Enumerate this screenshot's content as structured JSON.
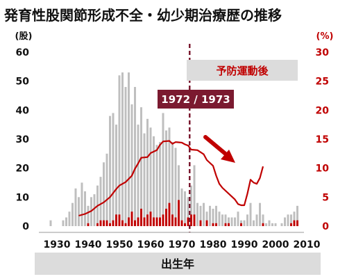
{
  "chart_data": {
    "type": "bar+line",
    "title": "発育性股関節形成不全・幼少期治療歴の推移",
    "xlabel": "出生年",
    "y_left_unit": "(股)",
    "y_right_unit": "(%)",
    "x_range": [
      1925,
      2010
    ],
    "x_ticks": [
      "1930",
      "1940",
      "1950",
      "1960",
      "1970",
      "1980",
      "1990",
      "2000",
      "2010"
    ],
    "y_left_range": [
      0,
      60
    ],
    "y_left_ticks": [
      "0",
      "10",
      "20",
      "30",
      "40",
      "50",
      "60"
    ],
    "y_right_range": [
      0,
      30
    ],
    "y_right_ticks": [
      "0",
      "5",
      "10",
      "15",
      "20",
      "25",
      "30"
    ],
    "grid": false,
    "series": [
      {
        "kind": "bar",
        "color": "#bfbfbf",
        "points": [
          [
            1928,
            2
          ],
          [
            1932,
            2
          ],
          [
            1933,
            3
          ],
          [
            1934,
            5
          ],
          [
            1935,
            8
          ],
          [
            1936,
            13
          ],
          [
            1937,
            10
          ],
          [
            1938,
            15
          ],
          [
            1939,
            12
          ],
          [
            1940,
            7
          ],
          [
            1941,
            10
          ],
          [
            1942,
            11
          ],
          [
            1943,
            14
          ],
          [
            1944,
            17
          ],
          [
            1945,
            22
          ],
          [
            1946,
            25
          ],
          [
            1947,
            38
          ],
          [
            1948,
            39
          ],
          [
            1949,
            35
          ],
          [
            1950,
            52
          ],
          [
            1951,
            53
          ],
          [
            1952,
            48
          ],
          [
            1953,
            53
          ],
          [
            1954,
            42
          ],
          [
            1955,
            48
          ],
          [
            1956,
            35
          ],
          [
            1957,
            41
          ],
          [
            1958,
            32
          ],
          [
            1959,
            37
          ],
          [
            1960,
            34
          ],
          [
            1961,
            31
          ],
          [
            1962,
            28
          ],
          [
            1963,
            29
          ],
          [
            1964,
            39
          ],
          [
            1965,
            33
          ],
          [
            1966,
            34
          ],
          [
            1967,
            29
          ],
          [
            1968,
            27
          ],
          [
            1969,
            21
          ],
          [
            1970,
            13
          ],
          [
            1971,
            12
          ],
          [
            1972,
            10
          ],
          [
            1973,
            14
          ],
          [
            1974,
            21
          ],
          [
            1975,
            8
          ],
          [
            1976,
            7
          ],
          [
            1977,
            8
          ],
          [
            1978,
            5
          ],
          [
            1979,
            7
          ],
          [
            1980,
            6
          ],
          [
            1981,
            7
          ],
          [
            1982,
            5
          ],
          [
            1983,
            4
          ],
          [
            1984,
            4
          ],
          [
            1985,
            3
          ],
          [
            1986,
            3
          ],
          [
            1987,
            3
          ],
          [
            1988,
            5
          ],
          [
            1989,
            2
          ],
          [
            1990,
            2
          ],
          [
            1991,
            4
          ],
          [
            1992,
            8
          ],
          [
            1993,
            2
          ],
          [
            1994,
            4
          ],
          [
            1995,
            8
          ],
          [
            1996,
            4
          ],
          [
            1997,
            1
          ],
          [
            1998,
            2
          ],
          [
            1999,
            1
          ],
          [
            2000,
            1
          ],
          [
            2002,
            1
          ],
          [
            2003,
            3
          ],
          [
            2004,
            4
          ],
          [
            2005,
            4
          ],
          [
            2006,
            5
          ],
          [
            2007,
            7
          ]
        ]
      },
      {
        "kind": "bar",
        "color": "#c00000",
        "points": [
          [
            1940,
            1
          ],
          [
            1943,
            1
          ],
          [
            1944,
            2
          ],
          [
            1945,
            2
          ],
          [
            1946,
            2
          ],
          [
            1947,
            1
          ],
          [
            1948,
            2
          ],
          [
            1949,
            4
          ],
          [
            1950,
            4
          ],
          [
            1951,
            2
          ],
          [
            1952,
            1
          ],
          [
            1953,
            3
          ],
          [
            1954,
            5
          ],
          [
            1955,
            2
          ],
          [
            1956,
            3
          ],
          [
            1957,
            6
          ],
          [
            1958,
            3
          ],
          [
            1959,
            4
          ],
          [
            1960,
            5
          ],
          [
            1961,
            3
          ],
          [
            1962,
            3
          ],
          [
            1963,
            3
          ],
          [
            1964,
            4
          ],
          [
            1965,
            6
          ],
          [
            1966,
            8
          ],
          [
            1967,
            4
          ],
          [
            1968,
            3
          ],
          [
            1969,
            9
          ],
          [
            1970,
            2
          ],
          [
            1971,
            1
          ],
          [
            1972,
            3
          ],
          [
            1973,
            4
          ],
          [
            1974,
            4
          ],
          [
            1976,
            2
          ],
          [
            1978,
            2
          ],
          [
            1980,
            1
          ],
          [
            1981,
            1
          ],
          [
            1984,
            1
          ],
          [
            1985,
            1
          ],
          [
            1989,
            1
          ],
          [
            1996,
            1
          ],
          [
            2005,
            1
          ],
          [
            2006,
            2
          ],
          [
            2007,
            2
          ]
        ]
      },
      {
        "kind": "line",
        "color": "#c00000",
        "axis": "right",
        "points": [
          [
            1937,
            1.8
          ],
          [
            1939,
            2.1
          ],
          [
            1941,
            2.6
          ],
          [
            1943,
            3.5
          ],
          [
            1945,
            4.1
          ],
          [
            1947,
            5.0
          ],
          [
            1949,
            6.4
          ],
          [
            1950,
            7.0
          ],
          [
            1952,
            7.6
          ],
          [
            1954,
            8.7
          ],
          [
            1955,
            9.9
          ],
          [
            1956,
            10.8
          ],
          [
            1957,
            11.8
          ],
          [
            1959,
            11.9
          ],
          [
            1960,
            12.6
          ],
          [
            1962,
            13.1
          ],
          [
            1963,
            14.0
          ],
          [
            1964,
            14.6
          ],
          [
            1966,
            14.7
          ],
          [
            1967,
            14.2
          ],
          [
            1968,
            14.5
          ],
          [
            1970,
            14.4
          ],
          [
            1971,
            14.1
          ],
          [
            1972,
            13.9
          ],
          [
            1973,
            13.2
          ],
          [
            1975,
            13.1
          ],
          [
            1977,
            12.4
          ],
          [
            1978,
            11.4
          ],
          [
            1980,
            10.4
          ],
          [
            1981,
            8.7
          ],
          [
            1982,
            7.3
          ],
          [
            1983,
            6.6
          ],
          [
            1985,
            5.6
          ],
          [
            1987,
            4.6
          ],
          [
            1988,
            3.8
          ],
          [
            1989,
            3.6
          ],
          [
            1990,
            3.6
          ],
          [
            1991,
            5.6
          ],
          [
            1992,
            8.0
          ],
          [
            1993,
            7.5
          ],
          [
            1994,
            7.3
          ],
          [
            1995,
            8.3
          ],
          [
            1996,
            10.3
          ]
        ]
      }
    ],
    "annotations": {
      "divider_label": "1972 / 1973",
      "divider_x": 1972.5,
      "divider_color": "#7b1a30",
      "prevention_label": "予防運動後",
      "arrow_color": "#c00000"
    }
  }
}
